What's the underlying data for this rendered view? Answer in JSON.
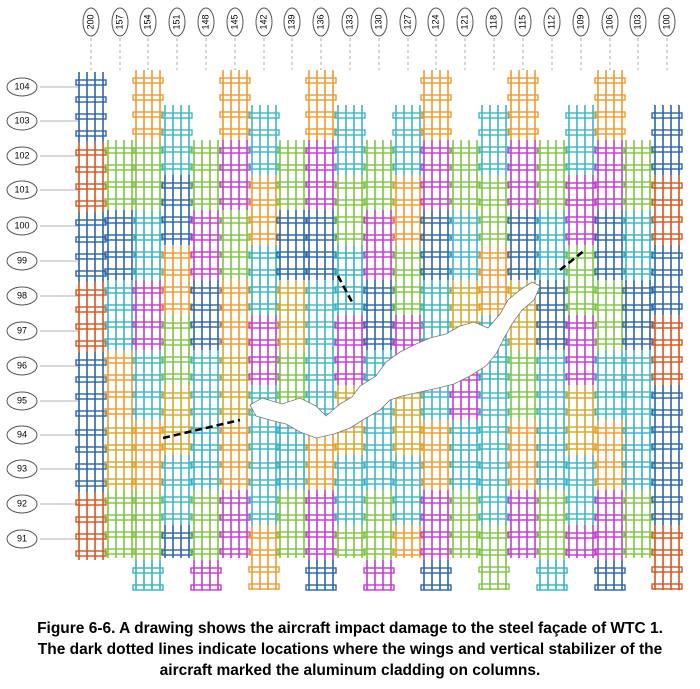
{
  "column_labels": [
    "200",
    "157",
    "154",
    "151",
    "148",
    "145",
    "142",
    "139",
    "136",
    "133",
    "130",
    "127",
    "124",
    "121",
    "118",
    "115",
    "112",
    "109",
    "106",
    "103",
    "100"
  ],
  "floor_labels": [
    "104",
    "103",
    "102",
    "101",
    "100",
    "99",
    "98",
    "97",
    "96",
    "95",
    "94",
    "93",
    "92",
    "91"
  ],
  "panel_colors": {
    "blue": "#2b64a8",
    "orange": "#ef9a2e",
    "teal": "#36b3c0",
    "green": "#7ec443",
    "magenta": "#c33ad0",
    "red": "#d9531e",
    "gold": "#d4a82c",
    "cyan": "#3db6c6"
  },
  "annotation_color": "#000000",
  "caption": {
    "line1": "Figure 6-6.  A drawing shows the aircraft impact damage to the steel façade of WTC 1.",
    "line2": "The dark dotted lines indicate locations where the wings and vertical stabilizer of the",
    "line3": "aircraft marked the aluminum cladding on columns."
  }
}
